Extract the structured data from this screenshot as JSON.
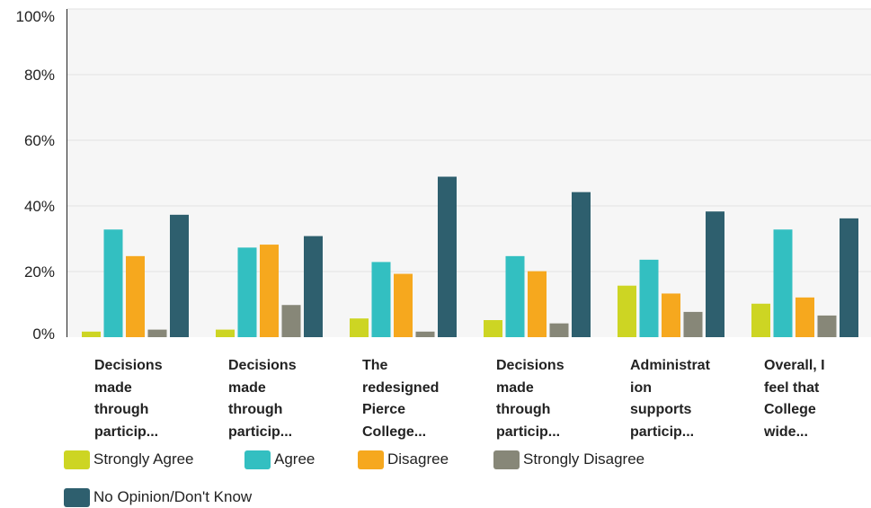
{
  "chart_data": {
    "type": "bar",
    "categories": [
      "Decisions\nmade\nthrough\nparticip...",
      "Decisions\nmade\nthrough\nparticip...",
      "The\nredesigned\nPierce\nCollege...",
      "Decisions\nmade\nthrough\nparticip...",
      "Administrat\nion\nsupports\nparticip...",
      "Overall, I\nfeel that\nCollege\nwide..."
    ],
    "series": [
      {
        "name": "Strongly Agree",
        "color": "#cdd523",
        "values": [
          1.7,
          2.3,
          5.7,
          5.2,
          15.7,
          10.2
        ]
      },
      {
        "name": "Agree",
        "color": "#33bfc1",
        "values": [
          32.8,
          27.3,
          22.9,
          24.7,
          23.6,
          32.8
        ]
      },
      {
        "name": "Disagree",
        "color": "#f6a81e",
        "values": [
          24.7,
          28.2,
          19.3,
          20.1,
          13.3,
          12.1
        ]
      },
      {
        "name": "Strongly Disagree",
        "color": "#878778",
        "values": [
          2.3,
          9.8,
          1.7,
          4.2,
          7.7,
          6.6
        ]
      },
      {
        "name": "No Opinion/Don't Know",
        "color": "#2e5f6e",
        "values": [
          37.3,
          30.8,
          48.9,
          44.2,
          38.3,
          36.2
        ]
      }
    ],
    "yticks": [
      "0%",
      "20%",
      "40%",
      "60%",
      "80%",
      "100%"
    ],
    "ylim": [
      0,
      100
    ],
    "grid": true,
    "legend_position": "bottom-left"
  }
}
